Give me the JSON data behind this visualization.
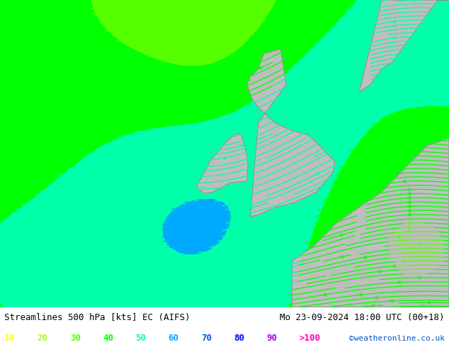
{
  "title_left": "Streamlines 500 hPa [kts] EC (AIFS)",
  "title_right": "Mo 23-09-2024 18:00 UTC (00+18)",
  "credit": "©weatheronline.co.uk",
  "legend_labels": [
    "10",
    "20",
    "30",
    "40",
    "50",
    "60",
    "70",
    "80",
    "90",
    ">100"
  ],
  "legend_colors": [
    "#ffff00",
    "#aaff00",
    "#55ff00",
    "#00ff00",
    "#00ffaa",
    "#00aaff",
    "#0055ff",
    "#0000ff",
    "#aa00ff",
    "#ff00aa"
  ],
  "bg_color": "#d2d2d2",
  "land_color": "#bebebe",
  "green_fill": "#b4ffb4",
  "figsize": [
    6.34,
    4.9
  ],
  "dpi": 100,
  "font_color": "#000000",
  "title_fontsize": 9,
  "legend_fontsize": 9,
  "credit_color": "#0055cc",
  "lon_min": -28,
  "lon_max": 12,
  "lat_min": 44,
  "lat_max": 64,
  "speed_bounds": [
    0,
    10,
    20,
    30,
    40,
    50,
    60,
    70,
    80,
    90,
    100,
    300
  ],
  "speed_colors": [
    "#d2d2d2",
    "#ffff00",
    "#aaff00",
    "#55ff00",
    "#00ff00",
    "#00ffaa",
    "#00aaff",
    "#0055ff",
    "#0000ff",
    "#aa00ff",
    "#ff00aa"
  ],
  "stream_cmap_colors": [
    "#00aaff",
    "#ffff00",
    "#aaff00",
    "#55ff00",
    "#00ff00",
    "#00ffaa",
    "#00aaff",
    "#0055ff",
    "#0000ff",
    "#aa00ff",
    "#ff00aa"
  ]
}
